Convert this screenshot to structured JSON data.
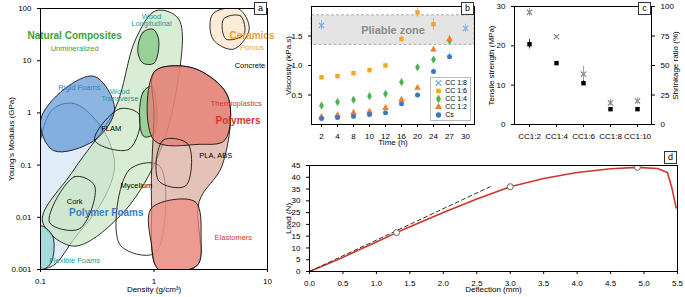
{
  "chart_data": [
    {
      "type": "region",
      "panel_label": "a",
      "x_label": "Density (g/cm³)",
      "y_label": "Young's Modulus (GPa)",
      "log": true,
      "xlim": [
        0.1,
        10
      ],
      "ylim": [
        0.001,
        100
      ],
      "xticks": [
        0.1,
        1,
        10
      ],
      "yticks": [
        0.001,
        0.01,
        0.1,
        1,
        10,
        100
      ],
      "regions": [
        {
          "color": "#d3e4f5",
          "stroke": "#000000",
          "points": [
            [
              0.1,
              0.0011
            ],
            [
              0.1,
              0.3
            ],
            [
              0.13,
              1.2
            ],
            [
              0.2,
              1.5
            ],
            [
              0.35,
              0.5
            ],
            [
              0.45,
              0.1
            ],
            [
              0.35,
              0.02
            ],
            [
              0.2,
              0.004
            ],
            [
              0.13,
              0.0012
            ]
          ]
        },
        {
          "color": "#c7e6c0",
          "stroke": "#000000",
          "points": [
            [
              0.104,
              0.0085
            ],
            [
              0.195,
              0.079
            ],
            [
              0.45,
              1.14
            ],
            [
              0.69,
              26
            ],
            [
              1.04,
              91
            ],
            [
              1.65,
              63
            ],
            [
              1.58,
              2.8
            ],
            [
              1.04,
              0.12
            ],
            [
              0.5,
              0.0105
            ],
            [
              0.195,
              0.0028
            ]
          ]
        },
        {
          "color": "#5b95d6",
          "stroke": "#000000",
          "points": [
            [
              0.1,
              0.7
            ],
            [
              0.16,
              2.8
            ],
            [
              0.3,
              5
            ],
            [
              0.45,
              1.2
            ],
            [
              0.3,
              0.3
            ],
            [
              0.13,
              0.19
            ]
          ]
        },
        {
          "color": "#8fd3cf",
          "stroke": "#000000",
          "points": [
            [
              0.1,
              0.0068
            ],
            [
              0.128,
              0.0044
            ],
            [
              0.123,
              0.0013
            ],
            [
              0.1,
              0.001
            ]
          ]
        },
        {
          "color": null,
          "stroke": "#000000",
          "points": [
            [
              0.12,
              0.008
            ],
            [
              0.2,
              0.06
            ],
            [
              0.3,
              0.04
            ],
            [
              0.22,
              0.006
            ]
          ]
        },
        {
          "color": null,
          "stroke": "#000000",
          "points": [
            [
              0.3,
              0.3
            ],
            [
              0.5,
              1.2
            ],
            [
              0.75,
              0.9
            ],
            [
              0.6,
              0.2
            ]
          ]
        },
        {
          "color": "#7cc47f",
          "stroke": "#000000",
          "points": [
            [
              0.72,
              15
            ],
            [
              0.8,
              35
            ],
            [
              0.98,
              40
            ],
            [
              1.1,
              25
            ],
            [
              1.0,
              9
            ],
            [
              0.8,
              9
            ]
          ]
        },
        {
          "color": "#7cc47f",
          "stroke": "#000000",
          "points": [
            [
              0.75,
              0.6
            ],
            [
              0.8,
              2.5
            ],
            [
              0.95,
              3.2
            ],
            [
              1.05,
              1.5
            ],
            [
              1.0,
              0.4
            ],
            [
              0.82,
              0.35
            ]
          ]
        },
        {
          "color": null,
          "stroke": "#000000",
          "points": [
            [
              0.5,
              0.003
            ],
            [
              0.6,
              0.08
            ],
            [
              1.1,
              0.1
            ],
            [
              1.25,
              0.01
            ],
            [
              1.0,
              0.002
            ]
          ]
        },
        {
          "color": "#d9a89a",
          "stroke": "#000000",
          "points": [
            [
              1.0,
              6
            ],
            [
              1.6,
              8
            ],
            [
              2.7,
              6
            ],
            [
              4.5,
              2
            ],
            [
              4.0,
              0.1
            ],
            [
              2.5,
              0.02
            ],
            [
              2.4,
              0.0012
            ],
            [
              1.1,
              0.001
            ],
            [
              0.95,
              0.02
            ],
            [
              1.0,
              1
            ]
          ]
        },
        {
          "color": "#e8786d",
          "stroke": "#000000",
          "points": [
            [
              1.0,
              6
            ],
            [
              1.6,
              8
            ],
            [
              2.7,
              6
            ],
            [
              4.5,
              2
            ],
            [
              4.2,
              0.3
            ],
            [
              2.5,
              0.25
            ],
            [
              1.0,
              0.3
            ]
          ]
        },
        {
          "color": "#ef8a7f",
          "stroke": "#000000",
          "points": [
            [
              0.95,
              0.015
            ],
            [
              2.3,
              0.02
            ],
            [
              2.6,
              0.004
            ],
            [
              2.4,
              0.0012
            ],
            [
              1.1,
              0.001
            ],
            [
              0.95,
              0.003
            ]
          ]
        },
        {
          "color": null,
          "stroke": "#000000",
          "points": [
            [
              1.1,
              0.05
            ],
            [
              1.2,
              0.3
            ],
            [
              2.0,
              0.25
            ],
            [
              1.9,
              0.04
            ]
          ]
        },
        {
          "color": "#fbe3c4",
          "stroke": "#000000",
          "points": [
            [
              3.3,
              79
            ],
            [
              5.6,
              98
            ],
            [
              6.9,
              40
            ],
            [
              5.0,
              16.6
            ],
            [
              3.3,
              26
            ]
          ]
        },
        {
          "color": null,
          "stroke": "#000000",
          "points": [
            [
              4.1,
              63
            ],
            [
              5.8,
              72
            ],
            [
              6.2,
              32
            ],
            [
              4.3,
              26
            ]
          ]
        }
      ],
      "annotations": [
        {
          "text": "Natural Composites",
          "x": 0.2,
          "y": 30,
          "color": "#3aa335",
          "weight": "bold"
        },
        {
          "text": "Unmineralized",
          "x": 0.2,
          "y": 17,
          "color": "#3aa335"
        },
        {
          "text": "Wood\nLongitudinal",
          "x": 0.95,
          "y": 60,
          "color": "#1a9c93"
        },
        {
          "text": "Ceramics",
          "x": 7.3,
          "y": 30,
          "color": "#f0a030",
          "weight": "bold"
        },
        {
          "text": "Porous",
          "x": 7.3,
          "y": 18,
          "color": "#f0a030"
        },
        {
          "text": "Concrete",
          "x": 7,
          "y": 8,
          "color": "#000000"
        },
        {
          "text": "Wood\nTransverse",
          "x": 0.5,
          "y": 2.2,
          "color": "#1a9c93"
        },
        {
          "text": "Thermoplastics",
          "x": 5.3,
          "y": 1.5,
          "color": "#d9332b"
        },
        {
          "text": "Polymers",
          "x": 5.5,
          "y": 0.7,
          "color": "#d9332b",
          "weight": "bold"
        },
        {
          "text": "Rigid Foams",
          "x": 0.22,
          "y": 3,
          "color": "#3b7dc4"
        },
        {
          "text": "FLAM",
          "x": 0.42,
          "y": 0.5,
          "color": "#000000"
        },
        {
          "text": "PLA, ABS",
          "x": 3.5,
          "y": 0.15,
          "color": "#000000"
        },
        {
          "text": "Cork",
          "x": 0.2,
          "y": 0.02,
          "color": "#000000"
        },
        {
          "text": "Mycelium",
          "x": 0.7,
          "y": 0.04,
          "color": "#000000"
        },
        {
          "text": "Polymer Foams",
          "x": 0.38,
          "y": 0.012,
          "color": "#3b7dc4",
          "weight": "bold"
        },
        {
          "text": "Elastomers",
          "x": 5,
          "y": 0.004,
          "color": "#d9332b"
        },
        {
          "text": "Flexible Foams",
          "x": 0.2,
          "y": 0.0015,
          "color": "#1a9c93"
        }
      ]
    },
    {
      "type": "scatter",
      "panel_label": "b",
      "x_label": "Time (h)",
      "y_label": "Viscosity (kPa.s)",
      "categories": [
        "2",
        "4",
        "8",
        "10",
        "12",
        "16",
        "20",
        "24",
        "27",
        "30"
      ],
      "ylim": [
        0,
        2
      ],
      "yticks": [
        0.5,
        {
          "value": 1,
          "label": "1.0"
        },
        1.5
      ],
      "legend": "bottom-right",
      "bands": [
        {
          "text": "Pliable zone",
          "range": [
            1.35,
            1.85
          ]
        }
      ],
      "series": [
        {
          "name": "CC 1:8",
          "color": "#7fb2e5",
          "marker": "times",
          "values": [
            1.68,
            null,
            null,
            null,
            null,
            null,
            null,
            null,
            null,
            1.63
          ],
          "errors": [
            0.08,
            null,
            null,
            null,
            null,
            null,
            null,
            null,
            null,
            0.07
          ]
        },
        {
          "name": "CC 1:6",
          "color": "#f5a623",
          "marker": "square",
          "values": [
            0.8,
            0.82,
            0.87,
            0.92,
            1.0,
            1.45,
            1.9,
            1.7,
            null,
            null
          ],
          "errors": [
            0.03,
            0.03,
            0.03,
            0.03,
            0.04,
            0.05,
            0.08,
            0.1,
            null,
            null
          ]
        },
        {
          "name": "CC 1:4",
          "color": "#4caf50",
          "marker": "diamond",
          "values": [
            0.32,
            0.38,
            0.42,
            0.48,
            0.52,
            0.72,
            0.97,
            1.1,
            1.42,
            null
          ],
          "errors": [
            0.02,
            0.02,
            0.02,
            0.02,
            0.03,
            0.03,
            0.04,
            0.05,
            0.06,
            null
          ]
        },
        {
          "name": "CC 1:2",
          "color": "#f08030",
          "marker": "triangle",
          "values": [
            0.13,
            0.16,
            0.2,
            0.22,
            0.28,
            0.42,
            0.62,
            1.27,
            1.45,
            null
          ],
          "errors": [
            0.02,
            0.02,
            0.02,
            0.02,
            0.02,
            0.03,
            0.03,
            0.05,
            0.06,
            null
          ]
        },
        {
          "name": "Cs",
          "color": "#3a78c4",
          "marker": "circle",
          "values": [
            0.1,
            0.12,
            0.14,
            0.17,
            0.2,
            0.35,
            0.5,
            0.9,
            1.15,
            null
          ],
          "errors": [
            0.01,
            0.01,
            0.01,
            0.01,
            0.02,
            0.02,
            0.03,
            0.04,
            0.05,
            null
          ]
        }
      ]
    },
    {
      "type": "scatter",
      "panel_label": "c",
      "y_label": "Tensile strength (MPa)",
      "y2_label": "Shrinkage ratio (%)",
      "categories": [
        "CC1:2",
        "CC1:4",
        "CC1:6",
        "CC1:8",
        "CC1:10"
      ],
      "ylim": [
        0,
        30
      ],
      "yticks": [
        0,
        10,
        20,
        30
      ],
      "y2lim": [
        0,
        100
      ],
      "y2ticks": [
        0,
        25,
        50,
        75,
        100
      ],
      "series": [
        {
          "color": "#8c8c8c",
          "marker": "times",
          "values": [
            28.5,
            22.3,
            12.8,
            5.5,
            6
          ],
          "errors": [
            1,
            0.3,
            2,
            0.8,
            0.8
          ]
        },
        {
          "color": "#000000",
          "marker": "square",
          "axis": "y2",
          "values": [
            68,
            52,
            35,
            13,
            13
          ],
          "errors": [
            4,
            1.5,
            2,
            1,
            1
          ]
        }
      ]
    },
    {
      "type": "line",
      "panel_label": "d",
      "x_label": "Deflection (mm)",
      "y_label": "Load (N)",
      "xlim": [
        0,
        5.5
      ],
      "ylim": [
        0,
        45
      ],
      "xticks": [
        {
          "value": 0,
          "label": "0.0"
        },
        0.5,
        {
          "value": 1,
          "label": "1.0"
        },
        1.5,
        {
          "value": 2,
          "label": "2.0"
        },
        2.5,
        {
          "value": 3,
          "label": "3.0"
        },
        3.5,
        {
          "value": 4,
          "label": "4.0"
        },
        4.5,
        {
          "value": 5,
          "label": "5.0"
        },
        5.5
      ],
      "yticks": [
        0,
        5,
        10,
        15,
        20,
        25,
        30,
        35,
        40,
        45
      ],
      "series": [
        {
          "type": "line",
          "color": "#d0342c",
          "x": [
            0,
            0.25,
            0.5,
            0.75,
            1,
            1.3,
            1.5,
            2,
            2.5,
            3,
            3.5,
            4,
            4.5,
            4.9,
            5.2,
            5.35,
            5.42,
            5.48
          ],
          "values": [
            0,
            3,
            6,
            9.3,
            12.5,
            16.5,
            19,
            25,
            30.8,
            36,
            39.5,
            42,
            43.6,
            44.2,
            43.7,
            42,
            35,
            27
          ]
        },
        {
          "type": "line",
          "color": "#333333",
          "line_style": "dashed",
          "x": [
            0,
            2.7
          ],
          "values": [
            0,
            36
          ]
        },
        {
          "type": "scatter",
          "color": "#666666",
          "marker": "circle",
          "x": [
            1.3,
            3,
            4.9
          ],
          "values": [
            16.5,
            36,
            44.2
          ]
        }
      ]
    }
  ]
}
